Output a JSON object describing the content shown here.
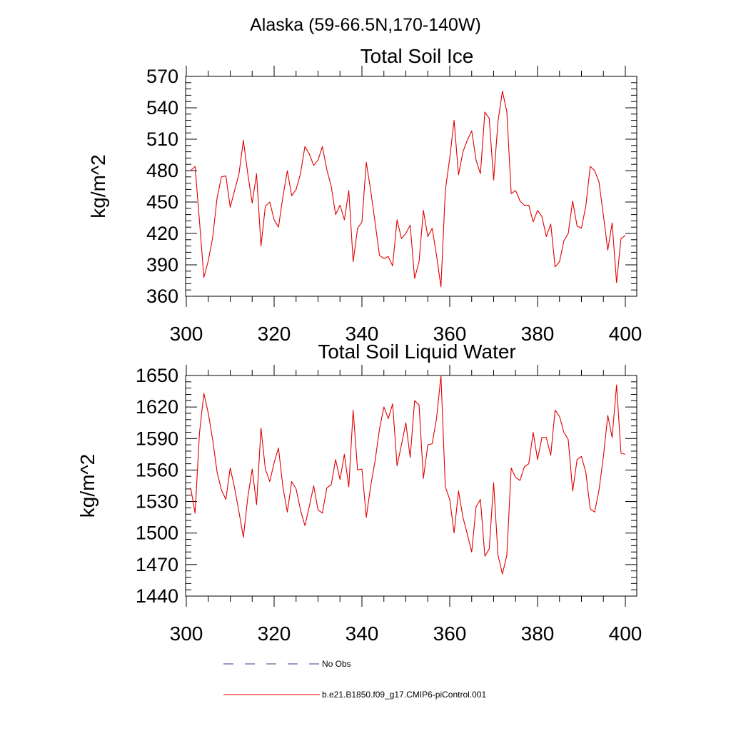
{
  "figure_title": "Alaska (59-66.5N,170-140W)",
  "legend": {
    "entries": [
      {
        "label": "No Obs",
        "style": "dashed",
        "color": "#3a3a8a"
      },
      {
        "label": "b.e21.B1850.f09_g17.CMIP6-piControl.001",
        "style": "solid",
        "color": "#e00000"
      }
    ]
  },
  "chart_data": [
    {
      "type": "line",
      "title": "Total Soil Ice",
      "xlabel": "",
      "ylabel": "kg/m^2",
      "xlim": [
        300,
        400
      ],
      "ylim": [
        360,
        570
      ],
      "xticks": [
        300,
        320,
        340,
        360,
        380,
        400
      ],
      "yticks": [
        360,
        390,
        420,
        450,
        480,
        510,
        540,
        570
      ],
      "series": [
        {
          "name": "b.e21.B1850.f09_g17.CMIP6-piControl.001",
          "color": "#e00000",
          "x_start": 301,
          "x_step": 1,
          "values": [
            480,
            484,
            432,
            378,
            394,
            416,
            454,
            474,
            475,
            445,
            461,
            477,
            509,
            477,
            449,
            477,
            408,
            446,
            450,
            433,
            426,
            455,
            480,
            456,
            462,
            477,
            503,
            496,
            485,
            490,
            503,
            481,
            465,
            438,
            447,
            433,
            461,
            393,
            425,
            431,
            488,
            461,
            430,
            399,
            396,
            398,
            389,
            433,
            415,
            420,
            428,
            377,
            393,
            442,
            417,
            425,
            399,
            369,
            461,
            492,
            528,
            476,
            498,
            509,
            518,
            490,
            477,
            536,
            530,
            471,
            527,
            556,
            536,
            458,
            461,
            451,
            447,
            447,
            431,
            442,
            436,
            417,
            429,
            388,
            393,
            413,
            420,
            451,
            427,
            425,
            446,
            484,
            480,
            469,
            437,
            404,
            430,
            373,
            415,
            418
          ]
        }
      ]
    },
    {
      "type": "line",
      "title": "Total Soil Liquid Water",
      "xlabel": "",
      "ylabel": "kg/m^2",
      "xlim": [
        300,
        400
      ],
      "ylim": [
        1440,
        1650
      ],
      "xticks": [
        300,
        320,
        340,
        360,
        380,
        400
      ],
      "yticks": [
        1440,
        1470,
        1500,
        1530,
        1560,
        1590,
        1620,
        1650
      ],
      "series": [
        {
          "name": "b.e21.B1850.f09_g17.CMIP6-piControl.001",
          "color": "#e00000",
          "x_start": 301,
          "x_step": 1,
          "values": [
            1543,
            1519,
            1595,
            1633,
            1614,
            1589,
            1558,
            1541,
            1532,
            1562,
            1543,
            1520,
            1496,
            1534,
            1561,
            1527,
            1600,
            1561,
            1549,
            1567,
            1581,
            1544,
            1520,
            1549,
            1542,
            1522,
            1507,
            1525,
            1545,
            1522,
            1519,
            1543,
            1546,
            1570,
            1551,
            1575,
            1544,
            1617,
            1560,
            1561,
            1515,
            1545,
            1569,
            1599,
            1620,
            1609,
            1623,
            1564,
            1584,
            1605,
            1572,
            1626,
            1622,
            1552,
            1584,
            1585,
            1609,
            1650,
            1544,
            1532,
            1500,
            1540,
            1515,
            1499,
            1482,
            1525,
            1532,
            1478,
            1485,
            1548,
            1479,
            1461,
            1479,
            1562,
            1553,
            1550,
            1563,
            1566,
            1596,
            1570,
            1591,
            1591,
            1574,
            1617,
            1611,
            1596,
            1589,
            1540,
            1570,
            1573,
            1558,
            1523,
            1520,
            1541,
            1573,
            1612,
            1591,
            1641,
            1576,
            1575
          ]
        }
      ]
    }
  ]
}
